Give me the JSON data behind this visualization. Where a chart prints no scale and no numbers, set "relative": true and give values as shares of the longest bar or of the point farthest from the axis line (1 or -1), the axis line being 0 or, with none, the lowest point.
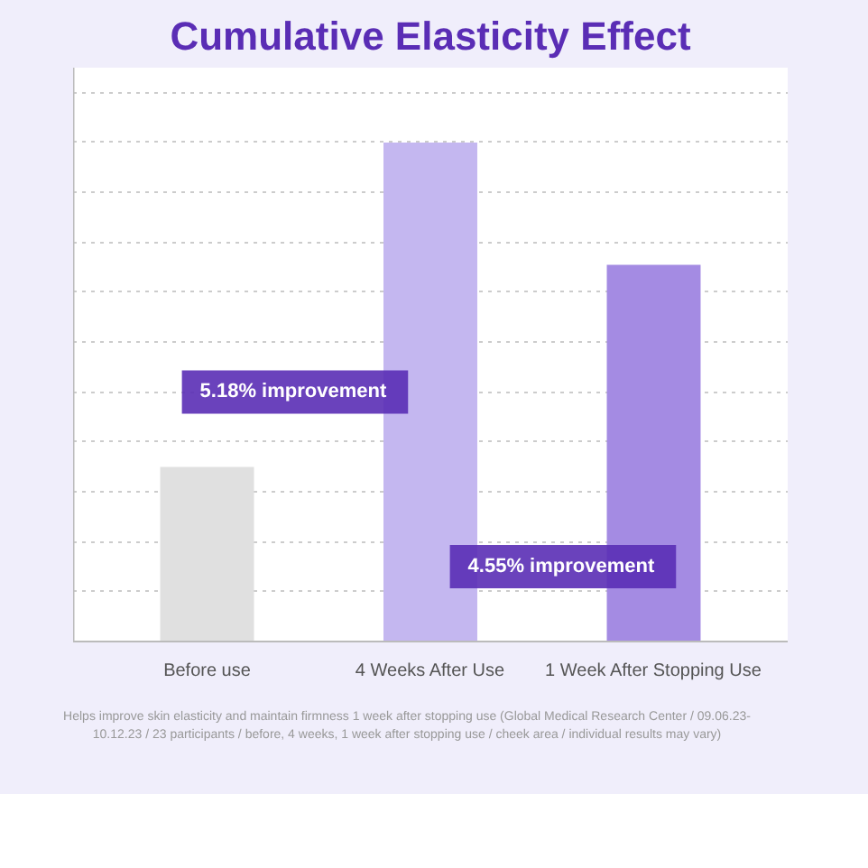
{
  "chart_data": {
    "type": "bar",
    "title": "Cumulative Elasticity Effect",
    "categories": [
      "Before use",
      "4 Weeks After Use",
      "1 Week After Stopping Use"
    ],
    "values": [
      0.35,
      1,
      0.755
    ],
    "colors": [
      "#e0e0e0",
      "#c4b7f0",
      "#a48be3"
    ],
    "relative": true,
    "grid": "y",
    "annotations": [
      "5.18% improvement",
      "4.55% improvement",
      "Helps improve skin elasticity and maintain firmness 1 week after stopping use (Global Medical Research Center / 09.06.23-10.12.23 / 23 participants / before, 4 weeks, 1 week after stopping use / cheek area / individual results may vary)"
    ]
  }
}
